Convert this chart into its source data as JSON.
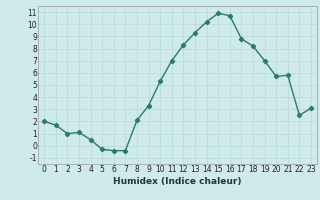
{
  "x": [
    0,
    1,
    2,
    3,
    4,
    5,
    6,
    7,
    8,
    9,
    10,
    11,
    12,
    13,
    14,
    15,
    16,
    17,
    18,
    19,
    20,
    21,
    22,
    23
  ],
  "y": [
    2.0,
    1.7,
    1.0,
    1.1,
    0.5,
    -0.3,
    -0.4,
    -0.4,
    2.1,
    3.3,
    5.3,
    7.0,
    8.3,
    9.3,
    10.2,
    10.9,
    10.7,
    8.8,
    8.2,
    7.0,
    5.7,
    5.8,
    2.5,
    3.1
  ],
  "line_color": "#2d7a6a",
  "marker": "D",
  "marker_size": 2.2,
  "line_width": 1.0,
  "bg_color": "#ceeaea",
  "grid_color": "#b8d8d8",
  "xlabel": "Humidex (Indice chaleur)",
  "xlim": [
    -0.5,
    23.5
  ],
  "ylim": [
    -1.5,
    11.5
  ],
  "xticks": [
    0,
    1,
    2,
    3,
    4,
    5,
    6,
    7,
    8,
    9,
    10,
    11,
    12,
    13,
    14,
    15,
    16,
    17,
    18,
    19,
    20,
    21,
    22,
    23
  ],
  "yticks": [
    -1,
    0,
    1,
    2,
    3,
    4,
    5,
    6,
    7,
    8,
    9,
    10,
    11
  ],
  "tick_fontsize": 5.5,
  "xlabel_fontsize": 6.5
}
